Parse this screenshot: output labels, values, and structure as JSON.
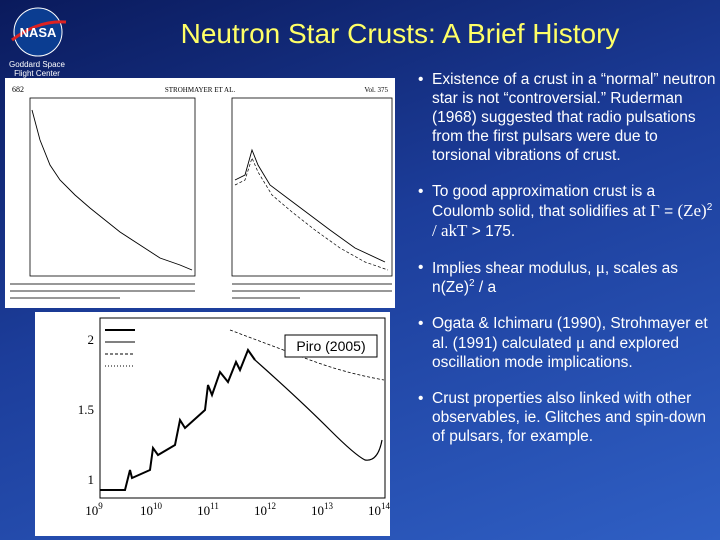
{
  "header": {
    "title": "Neutron Star Crusts: A Brief History",
    "logo": "NASA",
    "center": "Goddard Space Flight Center"
  },
  "figure1": {
    "page": "682",
    "running_head": "STROHMAYER ET AL.",
    "volume": "Vol. 375"
  },
  "figure2": {
    "credit": "Piro (2005)",
    "yticks": [
      "1",
      "1.5",
      "2"
    ],
    "xtick_base": "10",
    "xtick_exps": [
      "9",
      "10",
      "11",
      "12",
      "13",
      "14"
    ]
  },
  "bullets": [
    [
      "Existence of a crust in a “normal” neutron star is not “controversial.” Ruderman (1968) suggested that radio pulsations from the first pulsars were due to torsional vibrations of crust."
    ],
    [
      "To good approximation crust is a Coulomb solid, that solidifies at ",
      "Γ",
      " = ",
      "(Ze)",
      "2",
      " / akT",
      " > 175."
    ],
    [
      "Implies shear modulus, ",
      "μ",
      ", scales as n(Ze)",
      "2",
      " / a"
    ],
    [
      "Ogata & Ichimaru (1990), Strohmayer et al. (1991) calculated ",
      "μ",
      " and explored oscillation mode implications."
    ],
    [
      "Crust properties also linked with other observables, ie. Glitches and spin-down of pulsars, for example."
    ]
  ]
}
